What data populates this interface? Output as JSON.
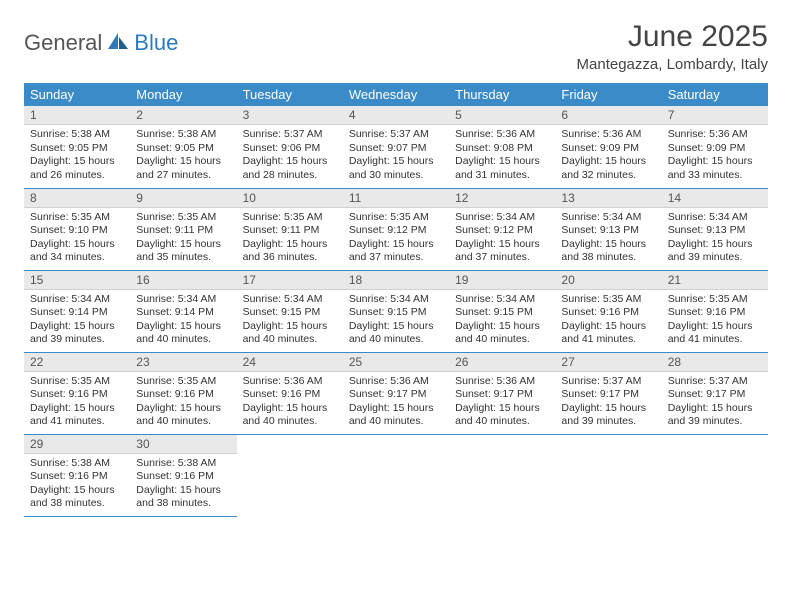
{
  "logo": {
    "text1": "General",
    "text2": "Blue"
  },
  "title": "June 2025",
  "location": "Mantegazza, Lombardy, Italy",
  "colors": {
    "header_bg": "#3b8bc9",
    "header_fg": "#ffffff",
    "daynum_bg": "#e9e9e9",
    "rule": "#3b8bc9"
  },
  "weekdays": [
    "Sunday",
    "Monday",
    "Tuesday",
    "Wednesday",
    "Thursday",
    "Friday",
    "Saturday"
  ],
  "days": [
    {
      "n": "1",
      "sunrise": "5:38 AM",
      "sunset": "9:05 PM",
      "dlh": "15",
      "dlm": "26"
    },
    {
      "n": "2",
      "sunrise": "5:38 AM",
      "sunset": "9:05 PM",
      "dlh": "15",
      "dlm": "27"
    },
    {
      "n": "3",
      "sunrise": "5:37 AM",
      "sunset": "9:06 PM",
      "dlh": "15",
      "dlm": "28"
    },
    {
      "n": "4",
      "sunrise": "5:37 AM",
      "sunset": "9:07 PM",
      "dlh": "15",
      "dlm": "30"
    },
    {
      "n": "5",
      "sunrise": "5:36 AM",
      "sunset": "9:08 PM",
      "dlh": "15",
      "dlm": "31"
    },
    {
      "n": "6",
      "sunrise": "5:36 AM",
      "sunset": "9:09 PM",
      "dlh": "15",
      "dlm": "32"
    },
    {
      "n": "7",
      "sunrise": "5:36 AM",
      "sunset": "9:09 PM",
      "dlh": "15",
      "dlm": "33"
    },
    {
      "n": "8",
      "sunrise": "5:35 AM",
      "sunset": "9:10 PM",
      "dlh": "15",
      "dlm": "34"
    },
    {
      "n": "9",
      "sunrise": "5:35 AM",
      "sunset": "9:11 PM",
      "dlh": "15",
      "dlm": "35"
    },
    {
      "n": "10",
      "sunrise": "5:35 AM",
      "sunset": "9:11 PM",
      "dlh": "15",
      "dlm": "36"
    },
    {
      "n": "11",
      "sunrise": "5:35 AM",
      "sunset": "9:12 PM",
      "dlh": "15",
      "dlm": "37"
    },
    {
      "n": "12",
      "sunrise": "5:34 AM",
      "sunset": "9:12 PM",
      "dlh": "15",
      "dlm": "37"
    },
    {
      "n": "13",
      "sunrise": "5:34 AM",
      "sunset": "9:13 PM",
      "dlh": "15",
      "dlm": "38"
    },
    {
      "n": "14",
      "sunrise": "5:34 AM",
      "sunset": "9:13 PM",
      "dlh": "15",
      "dlm": "39"
    },
    {
      "n": "15",
      "sunrise": "5:34 AM",
      "sunset": "9:14 PM",
      "dlh": "15",
      "dlm": "39"
    },
    {
      "n": "16",
      "sunrise": "5:34 AM",
      "sunset": "9:14 PM",
      "dlh": "15",
      "dlm": "40"
    },
    {
      "n": "17",
      "sunrise": "5:34 AM",
      "sunset": "9:15 PM",
      "dlh": "15",
      "dlm": "40"
    },
    {
      "n": "18",
      "sunrise": "5:34 AM",
      "sunset": "9:15 PM",
      "dlh": "15",
      "dlm": "40"
    },
    {
      "n": "19",
      "sunrise": "5:34 AM",
      "sunset": "9:15 PM",
      "dlh": "15",
      "dlm": "40"
    },
    {
      "n": "20",
      "sunrise": "5:35 AM",
      "sunset": "9:16 PM",
      "dlh": "15",
      "dlm": "41"
    },
    {
      "n": "21",
      "sunrise": "5:35 AM",
      "sunset": "9:16 PM",
      "dlh": "15",
      "dlm": "41"
    },
    {
      "n": "22",
      "sunrise": "5:35 AM",
      "sunset": "9:16 PM",
      "dlh": "15",
      "dlm": "41"
    },
    {
      "n": "23",
      "sunrise": "5:35 AM",
      "sunset": "9:16 PM",
      "dlh": "15",
      "dlm": "40"
    },
    {
      "n": "24",
      "sunrise": "5:36 AM",
      "sunset": "9:16 PM",
      "dlh": "15",
      "dlm": "40"
    },
    {
      "n": "25",
      "sunrise": "5:36 AM",
      "sunset": "9:17 PM",
      "dlh": "15",
      "dlm": "40"
    },
    {
      "n": "26",
      "sunrise": "5:36 AM",
      "sunset": "9:17 PM",
      "dlh": "15",
      "dlm": "40"
    },
    {
      "n": "27",
      "sunrise": "5:37 AM",
      "sunset": "9:17 PM",
      "dlh": "15",
      "dlm": "39"
    },
    {
      "n": "28",
      "sunrise": "5:37 AM",
      "sunset": "9:17 PM",
      "dlh": "15",
      "dlm": "39"
    },
    {
      "n": "29",
      "sunrise": "5:38 AM",
      "sunset": "9:16 PM",
      "dlh": "15",
      "dlm": "38"
    },
    {
      "n": "30",
      "sunrise": "5:38 AM",
      "sunset": "9:16 PM",
      "dlh": "15",
      "dlm": "38"
    }
  ],
  "labels": {
    "sunrise": "Sunrise: ",
    "sunset": "Sunset: ",
    "daylight_pre": "Daylight: ",
    "hours_word": " hours and ",
    "minutes_word": " minutes."
  }
}
